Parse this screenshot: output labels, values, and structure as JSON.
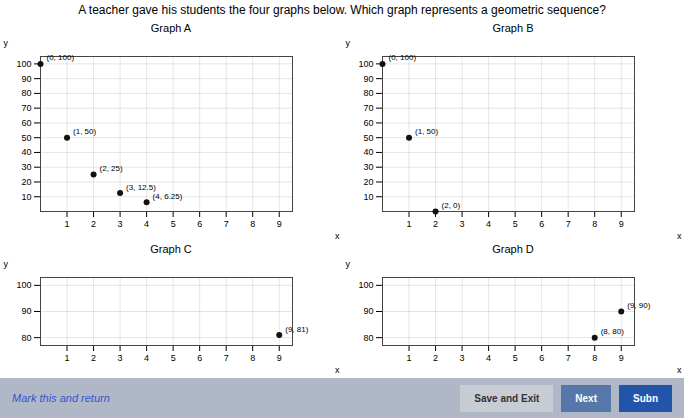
{
  "title": "A teacher gave his students the four graphs below. Which graph represents a geometric sequence?",
  "annotations": [
    "Mark this and return",
    "Save and Exit",
    "Next",
    "Subn"
  ],
  "chart_data": [
    {
      "type": "scatter",
      "title": "Graph A",
      "xlabel": "x",
      "ylabel": "y",
      "x": [
        0,
        1,
        2,
        3,
        4
      ],
      "values": [
        100,
        50,
        25,
        12.5,
        6.25
      ],
      "color": "#111111",
      "xlim": [
        0,
        9.5
      ],
      "ylim": [
        0,
        105
      ],
      "xticks": [
        1,
        2,
        3,
        4,
        5,
        6,
        7,
        8,
        9
      ],
      "yticks": [
        10,
        20,
        30,
        40,
        50,
        60,
        70,
        80,
        90,
        100
      ],
      "grid": true,
      "annotations": [
        {
          "text": "(0, 100)",
          "x": 0,
          "y": 100
        },
        {
          "text": "(1, 50)",
          "x": 1,
          "y": 50
        },
        {
          "text": "(2, 25)",
          "x": 2,
          "y": 25
        },
        {
          "text": "(3, 12.5)",
          "x": 3,
          "y": 12.5
        },
        {
          "text": "(4, 6.25)",
          "x": 4,
          "y": 6.25
        }
      ]
    },
    {
      "type": "scatter",
      "title": "Graph B",
      "xlabel": "x",
      "ylabel": "y",
      "x": [
        0,
        1,
        2
      ],
      "values": [
        100,
        50,
        0
      ],
      "color": "#111111",
      "xlim": [
        0,
        9.5
      ],
      "ylim": [
        0,
        105
      ],
      "xticks": [
        1,
        2,
        3,
        4,
        5,
        6,
        7,
        8,
        9
      ],
      "yticks": [
        10,
        20,
        30,
        40,
        50,
        60,
        70,
        80,
        90,
        100
      ],
      "grid": true,
      "annotations": [
        {
          "text": "(0, 100)",
          "x": 0,
          "y": 100
        },
        {
          "text": "(1, 50)",
          "x": 1,
          "y": 50
        },
        {
          "text": "(2, 0)",
          "x": 2,
          "y": 0
        }
      ]
    },
    {
      "type": "scatter",
      "title": "Graph C",
      "xlabel": "x",
      "ylabel": "y",
      "x": [
        9
      ],
      "values": [
        81
      ],
      "color": "#111111",
      "xlim": [
        0,
        9.5
      ],
      "ylim": [
        77,
        103
      ],
      "xticks": [
        1,
        2,
        3,
        4,
        5,
        6,
        7,
        8,
        9
      ],
      "yticks": [
        80,
        90,
        100
      ],
      "grid": true,
      "annotations": [
        {
          "text": "(9, 81)",
          "x": 9,
          "y": 81
        }
      ]
    },
    {
      "type": "scatter",
      "title": "Graph D",
      "xlabel": "x",
      "ylabel": "y",
      "x": [
        8,
        9
      ],
      "values": [
        80,
        90
      ],
      "color": "#111111",
      "xlim": [
        0,
        9.5
      ],
      "ylim": [
        77,
        103
      ],
      "xticks": [
        1,
        2,
        3,
        4,
        5,
        6,
        7,
        8,
        9
      ],
      "yticks": [
        80,
        90,
        100
      ],
      "grid": true,
      "annotations": [
        {
          "text": "(9, 90)",
          "x": 9,
          "y": 90
        },
        {
          "text": "(8, 80)",
          "x": 8,
          "y": 80
        }
      ]
    }
  ]
}
